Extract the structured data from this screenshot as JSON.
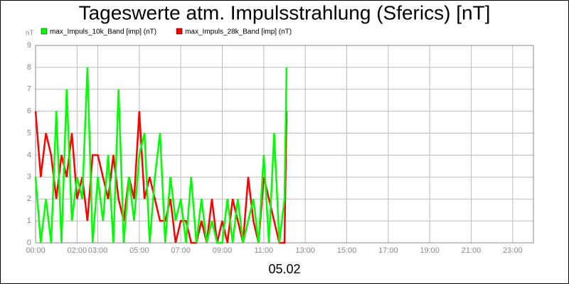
{
  "chart_data": {
    "type": "line",
    "title": "Tageswerte atm. Impulsstrahlung (Sferics) [nT]",
    "y_label": "nT",
    "x_label": "05.02",
    "x": [
      0,
      0.25,
      0.5,
      0.75,
      1,
      1.25,
      1.5,
      1.75,
      2,
      2.25,
      2.5,
      2.75,
      3,
      3.25,
      3.5,
      3.75,
      4,
      4.25,
      4.5,
      4.75,
      5,
      5.25,
      5.5,
      5.75,
      6,
      6.25,
      6.5,
      6.75,
      7,
      7.25,
      7.5,
      7.75,
      8,
      8.25,
      8.5,
      8.75,
      9,
      9.25,
      9.5,
      9.75,
      10,
      10.25,
      10.5,
      10.75,
      11,
      11.25,
      11.5,
      11.75,
      12,
      12.1
    ],
    "series": [
      {
        "name": "max_Impuls_28k_Band [imp] (nT)",
        "color": "#ff0000",
        "values": [
          6,
          3,
          5,
          4,
          2,
          4,
          3,
          5,
          2,
          3,
          1,
          4,
          4,
          3,
          2,
          4,
          2,
          1,
          3,
          2,
          6,
          2,
          3,
          2,
          1,
          1,
          2,
          0,
          1,
          1,
          0,
          0,
          1,
          0,
          2,
          0,
          1,
          0,
          2,
          1,
          0,
          3,
          1,
          0,
          3,
          2,
          1,
          0,
          0,
          6
        ]
      },
      {
        "name": "max_Impuls_10k_Band [imp] (nT)",
        "color": "#00ff00",
        "values": [
          3,
          0,
          2,
          0,
          6,
          0,
          7,
          1,
          3,
          2,
          8,
          0,
          3,
          1,
          4,
          0,
          7,
          0,
          3,
          1,
          4,
          5,
          0,
          3,
          5,
          0,
          3,
          1,
          2,
          0,
          3,
          0,
          2,
          0,
          1,
          0,
          0,
          2,
          0,
          2,
          0,
          1,
          2,
          0,
          4,
          0,
          5,
          0,
          2,
          8
        ]
      }
    ],
    "legend_order": [
      1,
      0
    ],
    "xlim": [
      0,
      24
    ],
    "xticks": [
      {
        "value": 0,
        "label": "00:00"
      },
      {
        "value": 2,
        "label": "02:00"
      },
      {
        "value": 3,
        "label": "03:00"
      },
      {
        "value": 5,
        "label": "05:00"
      },
      {
        "value": 7,
        "label": "07:00"
      },
      {
        "value": 9,
        "label": "09:00"
      },
      {
        "value": 11,
        "label": "11:00"
      },
      {
        "value": 13,
        "label": "13:00"
      },
      {
        "value": 15,
        "label": "15:00"
      },
      {
        "value": 17,
        "label": "17:00"
      },
      {
        "value": 19,
        "label": "19:00"
      },
      {
        "value": 21,
        "label": "21:00"
      },
      {
        "value": 23,
        "label": "23:00"
      }
    ],
    "ylim": [
      0,
      9
    ],
    "yticks": [
      0,
      1,
      2,
      3,
      4,
      5,
      6,
      7,
      8,
      9
    ],
    "grid": true
  }
}
